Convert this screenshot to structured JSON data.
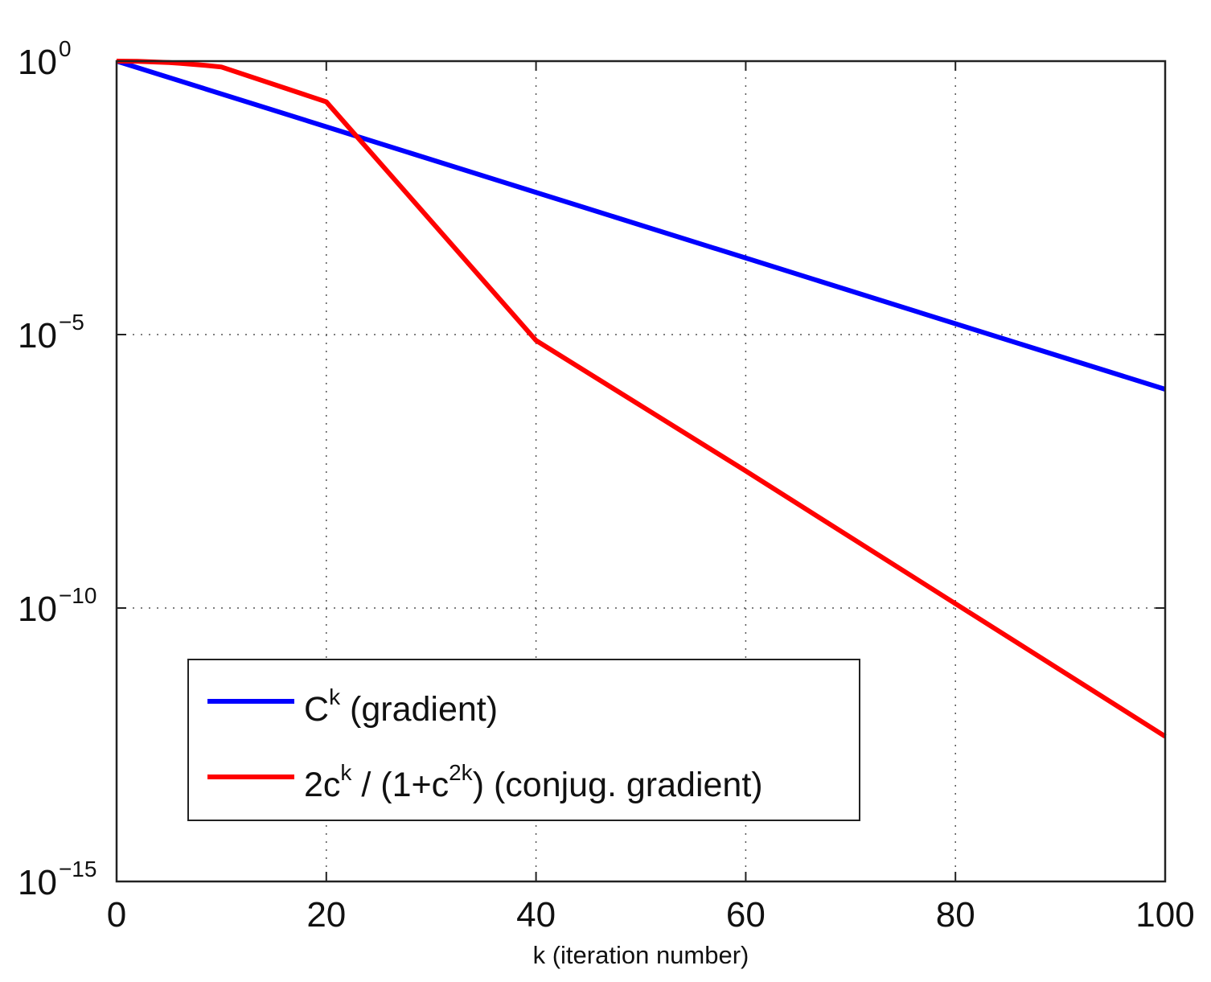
{
  "chart_data": {
    "type": "line",
    "title": "",
    "xlabel": "k (iteration number)",
    "ylabel": "",
    "xlim": [
      0,
      100
    ],
    "ylim_log10": [
      -15,
      0
    ],
    "y_scale": "log",
    "grid": true,
    "grid_style": "dotted",
    "x_ticks": [
      {
        "value": 0,
        "label": "0"
      },
      {
        "value": 20,
        "label": "20"
      },
      {
        "value": 40,
        "label": "40"
      },
      {
        "value": 60,
        "label": "60"
      },
      {
        "value": 80,
        "label": "80"
      },
      {
        "value": 100,
        "label": "100"
      }
    ],
    "y_ticks": [
      {
        "exp": 0,
        "base": "10",
        "sup": "0"
      },
      {
        "exp": -5,
        "base": "10",
        "sup": "−5"
      },
      {
        "exp": -10,
        "base": "10",
        "sup": "−10"
      },
      {
        "exp": -15,
        "base": "10",
        "sup": "−15"
      }
    ],
    "legend_position": "bottom-left",
    "series": [
      {
        "id": "gradient",
        "color": "#0000ff",
        "legend_main": "C",
        "legend_sup": "k",
        "legend_tail": " (gradient)",
        "x": [
          0,
          20,
          40,
          60,
          80,
          100
        ],
        "y": [
          1,
          0.0631,
          0.00398,
          0.000251,
          1.58e-05,
          1e-06
        ]
      },
      {
        "id": "conjugate_gradient",
        "color": "#ff0000",
        "legend_parts": [
          {
            "t": "2c",
            "sup": false
          },
          {
            "t": "k",
            "sup": true
          },
          {
            "t": " / (1+c",
            "sup": false
          },
          {
            "t": "2k",
            "sup": true
          },
          {
            "t": ") (conjug. gradient)",
            "sup": false
          }
        ],
        "x": [
          0,
          1,
          2,
          3,
          4,
          5,
          6,
          8,
          10,
          20,
          40,
          60,
          80,
          100
        ],
        "y": [
          1,
          0.9975,
          0.99,
          0.978,
          0.961,
          0.94,
          0.915,
          0.853,
          0.78,
          0.18,
          7.8e-06,
          3.2e-08,
          1.2e-10,
          4.5e-13
        ]
      }
    ]
  }
}
